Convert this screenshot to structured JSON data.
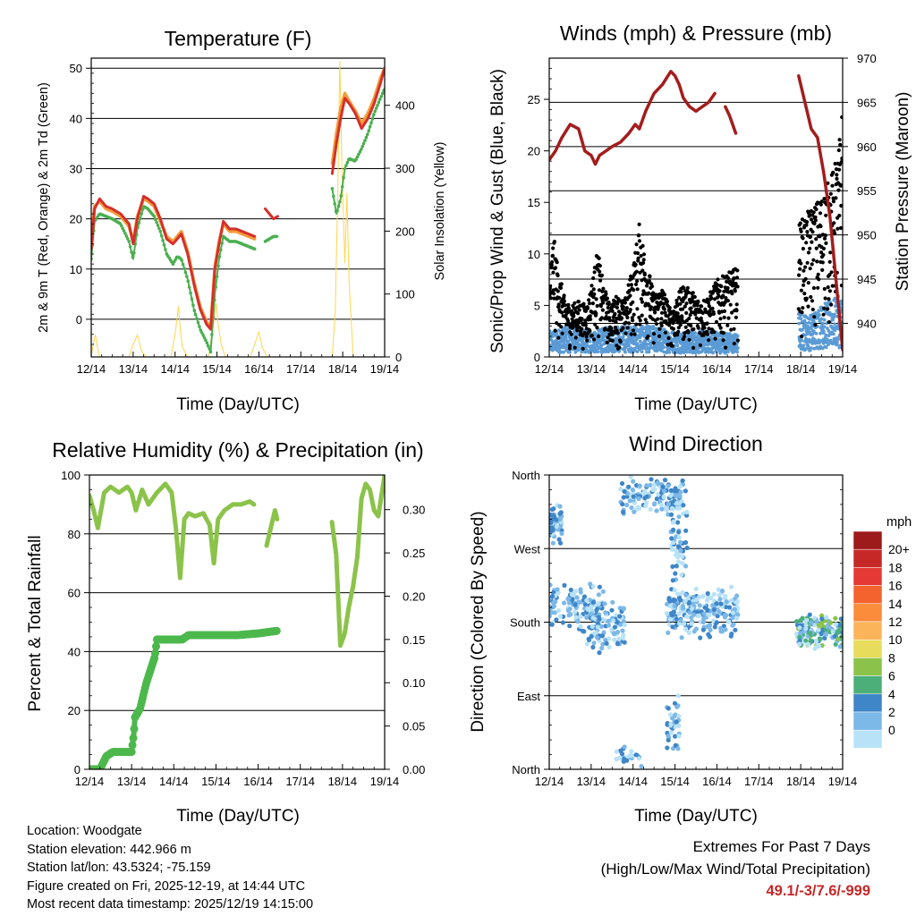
{
  "colors": {
    "temp2m": "#d4302b",
    "temp9m": "#f39c3a",
    "dewpoint": "#4caf50",
    "solar": "#ffd54f",
    "gust": "#000000",
    "wind": "#5b9bd5",
    "pressure": "#a31d1d",
    "rh": "#8bc34a",
    "precip": "#4cb84c",
    "extremes": "#c62828"
  },
  "chart_data": [
    {
      "type": "line",
      "title": "Temperature (F)",
      "xlabel": "Time (Day/UTC)",
      "ylabel": "2m & 9m T (Red, Orange) & 2m Td (Green)",
      "ylabel_right": "Solar Insolation (Yellow)",
      "x_ticks": [
        "12/14",
        "13/14",
        "14/14",
        "15/14",
        "16/14",
        "17/14",
        "18/14",
        "19/14"
      ],
      "xlim": [
        0,
        7
      ],
      "ylim": [
        -7.5,
        52
      ],
      "y_ticks": [
        0,
        10,
        20,
        30,
        40,
        50
      ],
      "ylim_right": [
        0,
        475
      ],
      "y_ticks_right": [
        0,
        100,
        200,
        300,
        400
      ],
      "series": [
        {
          "name": "2m T",
          "color_key": "temp2m",
          "x": [
            0,
            0.08,
            0.2,
            0.35,
            0.5,
            0.7,
            0.9,
            1.0,
            1.1,
            1.25,
            1.35,
            1.5,
            1.65,
            1.8,
            1.95,
            2.05,
            2.15,
            2.3,
            2.45,
            2.6,
            2.75,
            2.85,
            2.95,
            3.05,
            3.15,
            3.3,
            3.45,
            3.6,
            3.75,
            3.9
          ],
          "values": [
            14,
            22,
            24,
            22.5,
            22,
            21,
            19,
            15,
            20,
            24.5,
            24,
            23,
            20,
            16,
            15,
            16,
            17,
            13,
            7,
            2,
            -1,
            -2,
            10,
            15,
            19.5,
            18,
            18,
            17.5,
            17,
            16.5
          ],
          "x2": [
            4.15,
            4.25,
            4.35,
            4.45
          ],
          "values2": [
            22,
            21,
            20,
            20.5
          ],
          "x3": [
            5.75,
            5.85,
            5.95,
            6.05,
            6.15,
            6.3,
            6.45,
            6.6,
            6.75,
            6.9,
            7.0
          ],
          "values3": [
            29,
            35,
            40,
            44,
            43,
            41,
            38,
            40,
            43,
            47,
            50
          ]
        },
        {
          "name": "9m T",
          "color_key": "temp9m",
          "x": [
            0,
            0.08,
            0.2,
            0.35,
            0.5,
            0.7,
            0.9,
            1.0,
            1.1,
            1.25,
            1.35,
            1.5,
            1.65,
            1.8,
            1.95,
            2.05,
            2.15,
            2.3,
            2.45,
            2.6,
            2.75,
            2.85,
            2.95,
            3.05,
            3.15,
            3.3,
            3.45,
            3.6,
            3.75,
            3.9
          ],
          "values": [
            14.5,
            22.5,
            23.5,
            22,
            21.5,
            20.5,
            18.5,
            15.5,
            20.5,
            24,
            23.5,
            22.5,
            19.5,
            16.5,
            15.5,
            16.5,
            17.5,
            13.5,
            7.5,
            2.5,
            -0.5,
            -1.5,
            10.5,
            15.5,
            19,
            17.5,
            17.5,
            17,
            16.5,
            16
          ],
          "x2": [
            5.75,
            5.85,
            5.95,
            6.05,
            6.15,
            6.3,
            6.45,
            6.6,
            6.75,
            6.9,
            7.0
          ],
          "values2": [
            31,
            37,
            42,
            45,
            43.5,
            41.5,
            39,
            41,
            44,
            48,
            50
          ]
        },
        {
          "name": "2m Td",
          "color_key": "dewpoint",
          "x": [
            0,
            0.08,
            0.2,
            0.35,
            0.5,
            0.7,
            0.9,
            1.0,
            1.1,
            1.25,
            1.35,
            1.5,
            1.65,
            1.8,
            1.95,
            2.05,
            2.15,
            2.3,
            2.45,
            2.6,
            2.75,
            2.85,
            2.95,
            3.05,
            3.15,
            3.3,
            3.45,
            3.6,
            3.75,
            3.9
          ],
          "values": [
            12,
            19.5,
            21,
            20.5,
            20,
            19,
            15.5,
            12,
            18,
            22.5,
            22,
            20.5,
            17.5,
            13,
            11,
            12.5,
            12,
            8,
            2,
            -2,
            -4.5,
            -6.5,
            5,
            12,
            16.5,
            15.5,
            15.5,
            15,
            14.5,
            14
          ],
          "x2": [
            4.15,
            4.25,
            4.35,
            4.45
          ],
          "values2": [
            15.5,
            16,
            16.5,
            16.5
          ],
          "x3": [
            5.75,
            5.85,
            5.95,
            6.05,
            6.15,
            6.3,
            6.45,
            6.6,
            6.75,
            6.9,
            7.0
          ],
          "values3": [
            26,
            21,
            24,
            30,
            32,
            31.5,
            34,
            37,
            41,
            44,
            46
          ]
        },
        {
          "name": "Solar Insolation",
          "color_key": "solar",
          "axis": "right",
          "x": [
            0,
            0.05,
            0.1,
            0.15,
            0.2,
            0.9,
            1.0,
            1.1,
            1.2,
            1.3,
            1.9,
            2.0,
            2.08,
            2.13,
            2.18,
            2.3,
            2.8,
            2.9,
            2.98,
            3.03,
            3.1,
            3.2,
            3.8,
            3.9,
            4.0,
            4.08,
            4.2,
            5.75,
            5.82,
            5.88,
            5.93,
            5.98,
            6.05,
            6.1,
            6.15,
            6.25
          ],
          "values": [
            0,
            20,
            35,
            15,
            0,
            0,
            20,
            35,
            10,
            0,
            0,
            35,
            80,
            40,
            15,
            0,
            0,
            45,
            85,
            50,
            20,
            0,
            0,
            20,
            40,
            15,
            0,
            0,
            70,
            250,
            470,
            300,
            150,
            260,
            120,
            0
          ]
        }
      ]
    },
    {
      "type": "scatter",
      "title": "Winds (mph) & Pressure (mb)",
      "xlabel": "Time (Day/UTC)",
      "ylabel": "Sonic/Prop Wind & Gust (Blue, Black)",
      "ylabel_right": "Station Pressure (Maroon)",
      "x_ticks": [
        "12/14",
        "13/14",
        "14/14",
        "15/14",
        "16/14",
        "17/14",
        "18/14",
        "19/14"
      ],
      "xlim": [
        0,
        7
      ],
      "ylim": [
        0,
        29
      ],
      "y_ticks": [
        0,
        5,
        10,
        15,
        20,
        25
      ],
      "ylim_right": [
        936.2,
        970
      ],
      "y_ticks_right": [
        940,
        945,
        950,
        955,
        960,
        965,
        970
      ],
      "gust_envelope": {
        "x": [
          0,
          0.1,
          0.2,
          0.35,
          0.5,
          0.7,
          0.9,
          1.05,
          1.15,
          1.3,
          1.45,
          1.6,
          1.8,
          2.0,
          2.15,
          2.3,
          2.5,
          2.7,
          2.9,
          3.05,
          3.2,
          3.4,
          3.6,
          3.8,
          4.0,
          4.2,
          4.4,
          5.95,
          6.15,
          6.35,
          6.55,
          6.75,
          6.9,
          7.0
        ],
        "values": [
          7,
          12,
          9,
          6,
          5,
          5.5,
          5,
          8,
          10.5,
          7,
          5,
          6,
          5.5,
          9,
          13,
          10,
          6,
          7,
          4.5,
          6,
          7,
          6.5,
          5.5,
          6,
          7.5,
          8,
          8.5,
          13,
          14,
          15,
          16,
          18,
          20,
          25
        ]
      },
      "sustained_envelope": {
        "x": [
          0,
          0.5,
          1.0,
          1.5,
          2.0,
          2.5,
          3.0,
          3.5,
          4.0,
          4.5,
          5.95,
          6.2,
          6.45,
          6.7,
          6.95
        ],
        "values": [
          2.5,
          3,
          2.5,
          3,
          3,
          3,
          2.5,
          2.5,
          2.5,
          2.2,
          4.5,
          4,
          5,
          5.5,
          6
        ]
      },
      "series": [
        {
          "name": "Station Pressure",
          "color_key": "pressure",
          "x": [
            0,
            0.15,
            0.3,
            0.5,
            0.7,
            0.85,
            1.0,
            1.1,
            1.2,
            1.35,
            1.5,
            1.7,
            1.9,
            2.05,
            2.15,
            2.3,
            2.5,
            2.7,
            2.9,
            3.0,
            3.1,
            3.2,
            3.35,
            3.5,
            3.65,
            3.8,
            3.95
          ],
          "values": [
            958.5,
            959.5,
            961,
            962.5,
            962,
            959.5,
            959,
            958,
            959,
            959.5,
            960,
            960.5,
            961.5,
            962.5,
            962,
            964,
            966,
            967,
            968.5,
            968,
            967,
            965.5,
            964.5,
            964,
            964.5,
            965,
            966
          ],
          "x2": [
            4.2,
            4.3,
            4.45
          ],
          "values2": [
            964.5,
            963.5,
            961.5
          ],
          "x3": [
            5.95,
            6.05,
            6.15,
            6.25,
            6.4,
            6.55,
            6.7,
            6.8,
            6.9,
            7.0
          ],
          "values3": [
            968,
            966,
            964,
            962,
            961,
            957,
            952,
            947,
            942,
            937
          ]
        }
      ]
    },
    {
      "type": "line",
      "title": "Relative Humidity (%) & Precipitation (in)",
      "xlabel": "Time (Day/UTC)",
      "ylabel": "Percent & Total Rainfall",
      "x_ticks": [
        "12/14",
        "13/14",
        "14/14",
        "15/14",
        "16/14",
        "17/14",
        "18/14",
        "19/14"
      ],
      "xlim": [
        0,
        7
      ],
      "ylim": [
        0,
        100
      ],
      "y_ticks": [
        0,
        20,
        40,
        60,
        80,
        100
      ],
      "ylim_right": [
        0,
        0.34
      ],
      "y_ticks_right": [
        "0.00",
        "0.05",
        "0.10",
        "0.15",
        "0.20",
        "0.25",
        "0.30"
      ],
      "series": [
        {
          "name": "Relative Humidity",
          "color_key": "rh",
          "x": [
            0,
            0.1,
            0.2,
            0.35,
            0.5,
            0.7,
            0.9,
            1.0,
            1.1,
            1.25,
            1.4,
            1.6,
            1.8,
            1.95,
            2.05,
            2.15,
            2.25,
            2.35,
            2.5,
            2.7,
            2.85,
            2.95,
            3.05,
            3.2,
            3.4,
            3.6,
            3.8,
            3.9
          ],
          "values": [
            93,
            88,
            82,
            94,
            96,
            94,
            96,
            94,
            88,
            95,
            90,
            94,
            97,
            94,
            82,
            65,
            85,
            87,
            86,
            87,
            83,
            70,
            85,
            88,
            90,
            90,
            91,
            90
          ],
          "x2": [
            4.2,
            4.3,
            4.4,
            4.45
          ],
          "values2": [
            76,
            82,
            88,
            85
          ],
          "x3": [
            5.75,
            5.85,
            5.95,
            6.05,
            6.15,
            6.25,
            6.35,
            6.45,
            6.55,
            6.65,
            6.75,
            6.85,
            7.0
          ],
          "values3": [
            84,
            73,
            42,
            46,
            55,
            62,
            72,
            92,
            97,
            95,
            88,
            86,
            100
          ]
        },
        {
          "name": "Total Precipitation",
          "color_key": "precip",
          "axis": "right",
          "x": [
            0,
            0.25,
            0.4,
            0.55,
            0.6,
            0.8,
            1.0,
            1.05,
            1.08,
            1.2,
            1.35,
            1.55,
            1.6,
            1.75,
            2.2,
            2.35,
            3.0,
            3.5,
            4.0,
            4.45
          ],
          "values": [
            0,
            0,
            0.015,
            0.02,
            0.02,
            0.02,
            0.02,
            0.04,
            0.06,
            0.07,
            0.1,
            0.13,
            0.15,
            0.15,
            0.15,
            0.155,
            0.155,
            0.155,
            0.157,
            0.16
          ]
        }
      ]
    },
    {
      "type": "scatter",
      "title": "Wind Direction",
      "xlabel": "Time (Day/UTC)",
      "ylabel": "Direction (Colored By Speed)",
      "x_ticks": [
        "12/14",
        "13/14",
        "14/14",
        "15/14",
        "16/14",
        "17/14",
        "18/14",
        "19/14"
      ],
      "xlim": [
        0,
        7
      ],
      "ylim": [
        0,
        360
      ],
      "y_ticks": [
        "North",
        "East",
        "South",
        "West",
        "North"
      ],
      "legend_title": "mph",
      "legend_labels": [
        "20+",
        "18",
        "16",
        "14",
        "12",
        "10",
        "8",
        "6",
        "4",
        "2",
        "0"
      ],
      "legend_colors": [
        "#9e1b1b",
        "#c62828",
        "#e53935",
        "#f4632e",
        "#fb8c3c",
        "#fcb45a",
        "#e8dc5c",
        "#8bc34a",
        "#4caf7a",
        "#3f86c8",
        "#7cb8e8",
        "#b8e2f8"
      ],
      "clusters": [
        {
          "x": [
            0,
            0.3
          ],
          "y": [
            270,
            330
          ],
          "count": 50
        },
        {
          "x": [
            0,
            1.3
          ],
          "y": [
            165,
            230
          ],
          "count": 120
        },
        {
          "x": [
            0.9,
            1.8
          ],
          "y": [
            140,
            210
          ],
          "count": 110
        },
        {
          "x": [
            1.7,
            3.2
          ],
          "y": [
            310,
            360
          ],
          "count": 140
        },
        {
          "x": [
            2.9,
            3.3
          ],
          "y": [
            200,
            345
          ],
          "count": 60
        },
        {
          "x": [
            2.8,
            4.5
          ],
          "y": [
            160,
            225
          ],
          "count": 220
        },
        {
          "x": [
            5.9,
            7.0
          ],
          "y": [
            145,
            190
          ],
          "count": 150
        },
        {
          "x": [
            1.6,
            2.3
          ],
          "y": [
            0,
            30
          ],
          "count": 25
        },
        {
          "x": [
            2.8,
            3.1
          ],
          "y": [
            0,
            100
          ],
          "count": 40
        }
      ]
    }
  ],
  "info": {
    "location": "Location: Woodgate",
    "elevation": "Station elevation: 442.966 m",
    "latlon": "Station lat/lon: 43.5324; -75.159",
    "created": "Figure created on Fri, 2025-12-19, at 14:44 UTC",
    "latest": "Most recent data timestamp: 2025/12/19 14:15:00"
  },
  "extremes": {
    "title": "Extremes For Past 7 Days",
    "subtitle": "(High/Low/Max Wind/Total Precipitation)",
    "values": "49.1/-3/7.6/-999"
  }
}
